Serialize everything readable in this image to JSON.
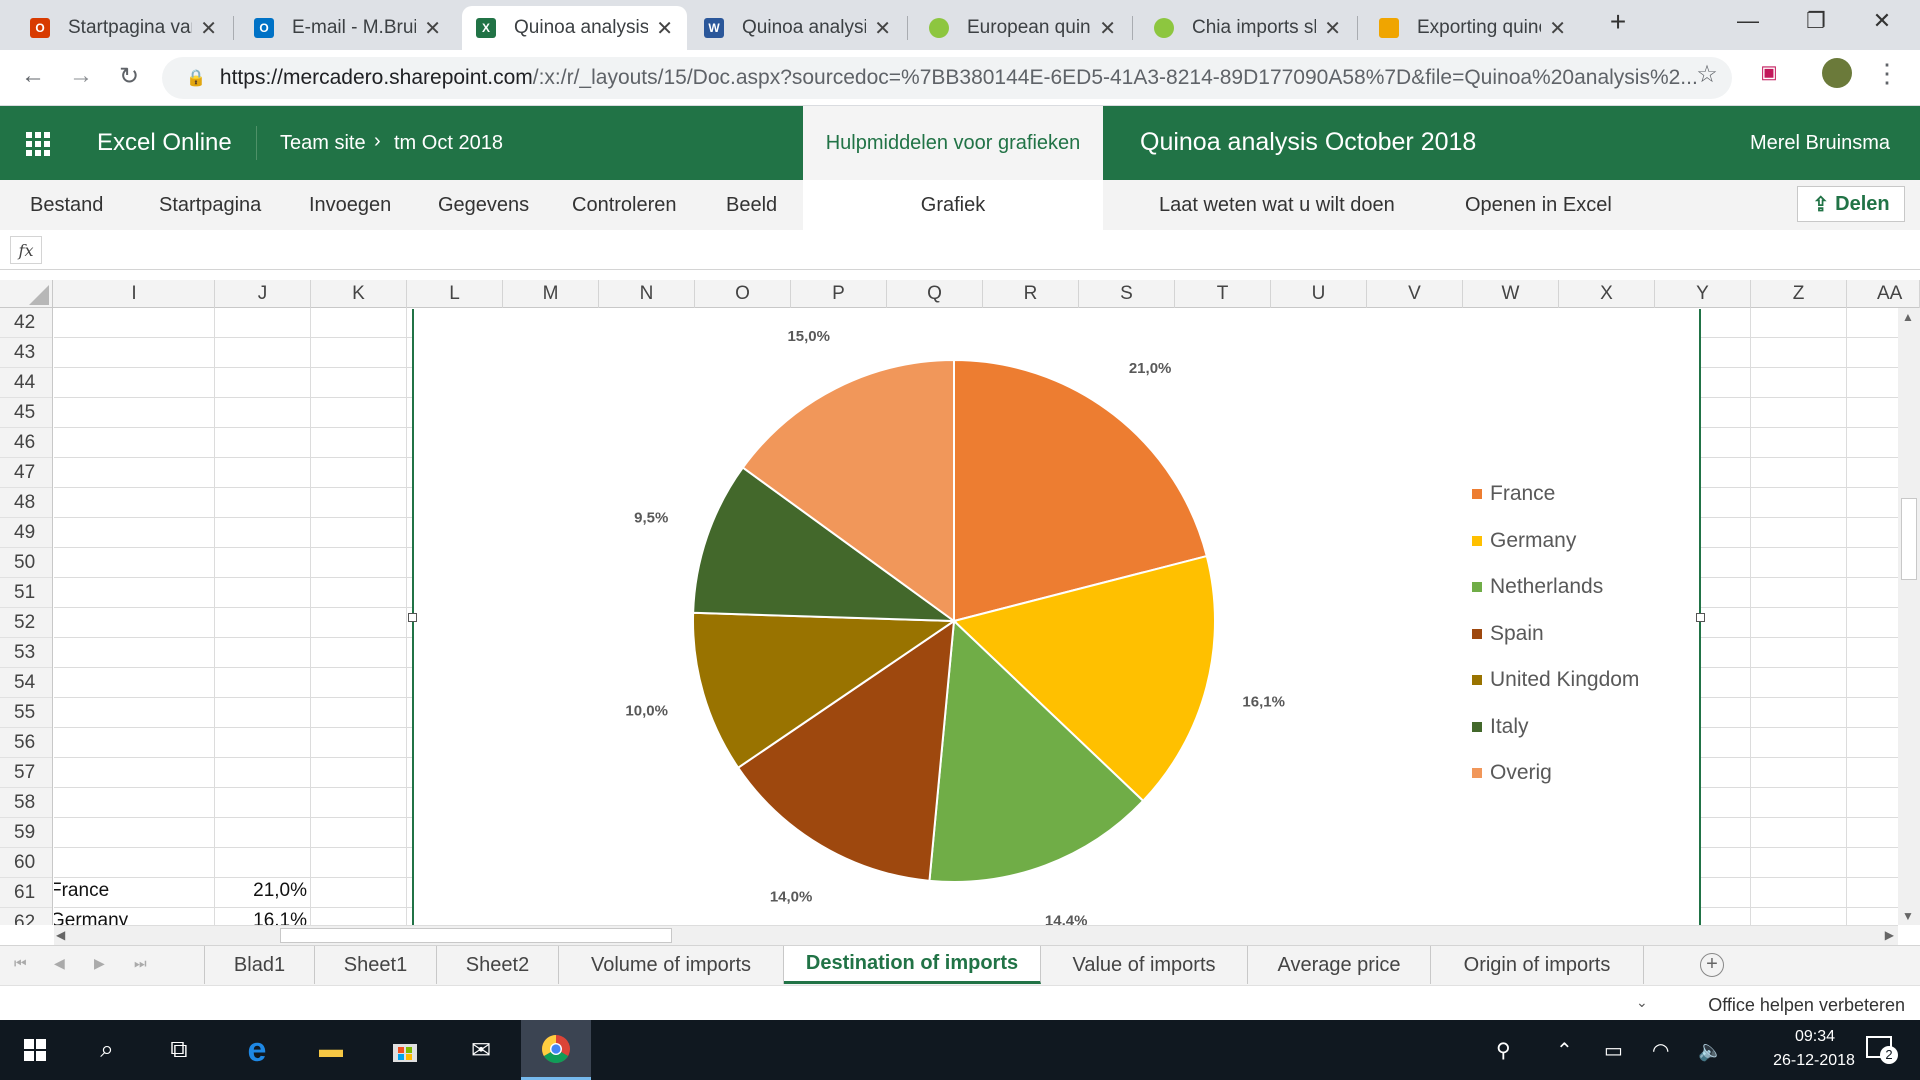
{
  "browser": {
    "tabs": [
      {
        "title": "Startpagina van",
        "icon": "office-icon",
        "color": "#d83b01"
      },
      {
        "title": "E-mail - M.Bruin",
        "icon": "outlook-icon",
        "color": "#0072c6"
      },
      {
        "title": "Quinoa analysis",
        "icon": "excel-icon",
        "color": "#217346",
        "active": true
      },
      {
        "title": "Quinoa analysis",
        "icon": "word-icon",
        "color": "#2b579a"
      },
      {
        "title": "European quino",
        "icon": "site-icon",
        "color": "#8dc63f"
      },
      {
        "title": "Chia imports sh",
        "icon": "site-icon",
        "color": "#8dc63f"
      },
      {
        "title": "Exporting quino",
        "icon": "site-icon",
        "color": "#f0a500"
      }
    ],
    "new_tab": "+",
    "url_host": "https://mercadero.sharepoint.com",
    "url_path": "/:x:/r/_layouts/15/Doc.aspx?sourcedoc=%7BB380144E-6ED5-41A3-8214-89D177090A58%7D&file=Quinoa%20analysis%2..."
  },
  "excel": {
    "app_name": "Excel Online",
    "breadcrumb_site": "Team site",
    "breadcrumb_sep": "›",
    "breadcrumb_folder": "tm Oct 2018",
    "chart_tools": "Hulpmiddelen voor grafieken",
    "doc_title": "Quinoa analysis October 2018",
    "user": "Merel Bruinsma",
    "ribbon": {
      "file": "Bestand",
      "home": "Startpagina",
      "insert": "Invoegen",
      "data": "Gegevens",
      "review": "Controleren",
      "view": "Beeld",
      "chart": "Grafiek",
      "tell_me": "Laat weten wat u wilt doen",
      "open_in_excel": "Openen in Excel",
      "share": "Delen"
    },
    "fx": "fx",
    "columns": [
      "I",
      "J",
      "K",
      "L",
      "M",
      "N",
      "O",
      "P",
      "Q",
      "R",
      "S",
      "T",
      "U",
      "V",
      "W",
      "X",
      "Y",
      "Z",
      "AA"
    ],
    "rows": [
      "42",
      "43",
      "44",
      "45",
      "46",
      "47",
      "48",
      "49",
      "50",
      "51",
      "52",
      "53",
      "54",
      "55",
      "56",
      "57",
      "58",
      "59",
      "60",
      "61",
      "62"
    ],
    "cells": {
      "r61_i": "France",
      "r61_j": "21,0%",
      "r62_i": "Germany",
      "r62_j": "16,1%"
    },
    "sheets": [
      "Blad1",
      "Sheet1",
      "Sheet2",
      "Volume of imports",
      "Destination of imports",
      "Value of imports",
      "Average price",
      "Origin of imports"
    ],
    "active_sheet": "Destination of imports",
    "status": "Office helpen verbeteren"
  },
  "chart_data": {
    "type": "pie",
    "categories": [
      "France",
      "Germany",
      "Netherlands",
      "Spain",
      "United Kingdom",
      "Italy",
      "Overig"
    ],
    "values": [
      21.0,
      16.1,
      14.4,
      14.0,
      10.0,
      9.5,
      15.0
    ],
    "labels": [
      "21,0%",
      "16,1%",
      "14,4%",
      "14,0%",
      "10,0%",
      "9,5%",
      "15,0%"
    ],
    "colors": [
      "#ed7d31",
      "#ffc000",
      "#70ad47",
      "#9e480e",
      "#997300",
      "#43682b",
      "#f1975a"
    ],
    "legend_position": "right"
  },
  "taskbar": {
    "time": "09:34",
    "date": "26-12-2018",
    "notifications": "2"
  }
}
